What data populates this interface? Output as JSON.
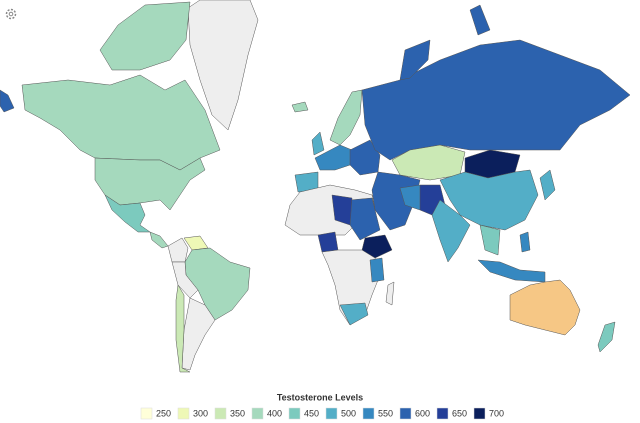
{
  "legend": {
    "title": "Testosterone Levels",
    "items": [
      {
        "label": "250",
        "color": "#ffffd9"
      },
      {
        "label": "300",
        "color": "#eef8b6"
      },
      {
        "label": "350",
        "color": "#cbe9b5"
      },
      {
        "label": "400",
        "color": "#a5d9bd"
      },
      {
        "label": "450",
        "color": "#7ccabe"
      },
      {
        "label": "500",
        "color": "#53aec7"
      },
      {
        "label": "550",
        "color": "#3688c0"
      },
      {
        "label": "600",
        "color": "#2c62ae"
      },
      {
        "label": "650",
        "color": "#243f98"
      },
      {
        "label": "700",
        "color": "#0b1f5c"
      }
    ]
  }
}
